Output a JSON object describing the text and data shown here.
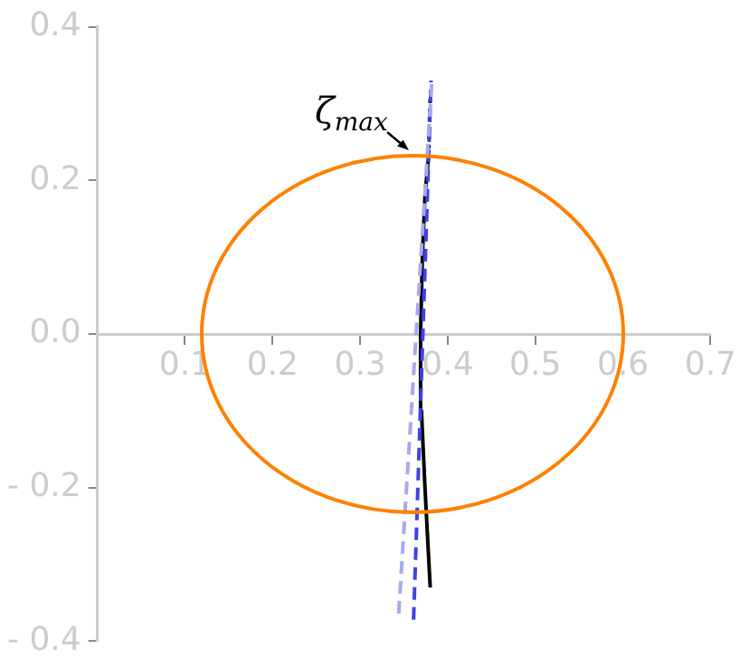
{
  "chart_data": {
    "type": "line",
    "xlim": [
      0,
      0.7
    ],
    "ylim": [
      -0.4,
      0.4
    ],
    "xticks": [
      0.1,
      0.2,
      0.3,
      0.4,
      0.5,
      0.6,
      0.7
    ],
    "yticks": [
      {
        "value": -0.4,
        "label": "- 0.4"
      },
      {
        "value": -0.2,
        "label": "- 0.2"
      },
      {
        "value": 0,
        "label": "0.0"
      },
      0.2,
      0.4
    ],
    "grid": false,
    "legend": false,
    "marker": "none",
    "annotations": [
      "ζ$_{max}$"
    ],
    "series": [
      {
        "color": "#a8a8f0",
        "line_style": "dashed",
        "x": [
          0.344,
          0.382
        ],
        "values": [
          -0.364,
          0.33
        ]
      },
      {
        "color": "#4040e8",
        "line_style": "dashed",
        "x": [
          0.361,
          0.381
        ],
        "values": [
          -0.372,
          0.33
        ]
      },
      {
        "color": "#000000",
        "line_style": "solid",
        "x": [
          0.38,
          0.374,
          0.37,
          0.369,
          0.371,
          0.374,
          0.378
        ],
        "values": [
          -0.33,
          -0.2,
          -0.1,
          0,
          0.1,
          0.18,
          0.23
        ]
      },
      {
        "color": "#000000",
        "line_style": "dotted",
        "x": [
          0.378,
          0.38
        ],
        "values": [
          0.23,
          0.31
        ]
      }
    ]
  }
}
